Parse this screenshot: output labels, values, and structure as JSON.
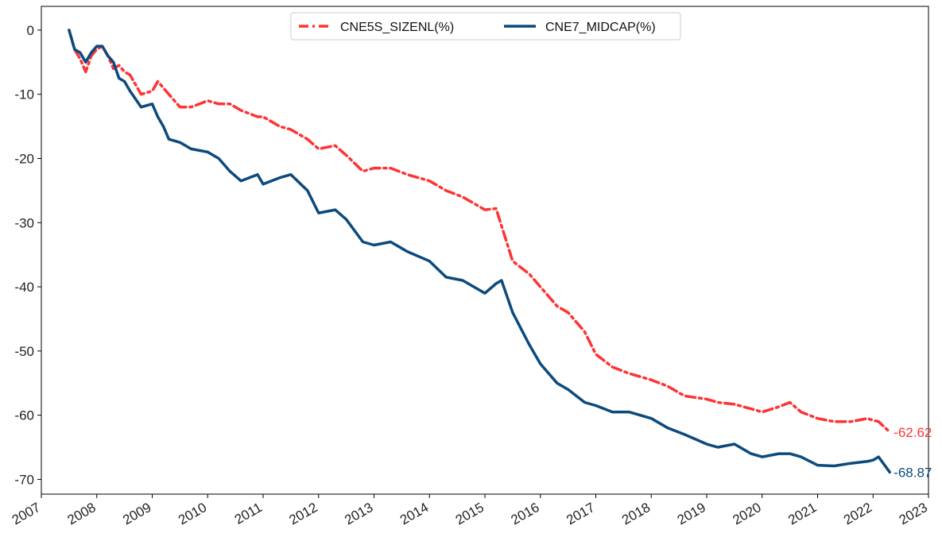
{
  "chart_data": {
    "type": "line",
    "title": "",
    "xlabel": "",
    "ylabel": "",
    "xlim": [
      2007.0,
      2023.0
    ],
    "ylim": [
      -72.3,
      3.7
    ],
    "x_ticks": [
      "2007",
      "2008",
      "2009",
      "2010",
      "2011",
      "2012",
      "2013",
      "2014",
      "2015",
      "2016",
      "2017",
      "2018",
      "2019",
      "2020",
      "2021",
      "2022",
      "2023"
    ],
    "y_ticks": [
      0,
      -10,
      -20,
      -30,
      -40,
      -50,
      -60,
      -70
    ],
    "y_tick_labels": [
      "0",
      "-10",
      "-20",
      "-30",
      "-40",
      "-50",
      "-60",
      "-70"
    ],
    "grid": false,
    "legend": {
      "placement": "top-center",
      "columns": 2
    },
    "series": [
      {
        "name": "CNE5S_SIZENL(%)",
        "color": "#ff3333",
        "style": "dashdot",
        "end_label": "-62.62",
        "x": [
          2007.5,
          2007.6,
          2007.7,
          2007.8,
          2007.9,
          2008.0,
          2008.1,
          2008.2,
          2008.3,
          2008.4,
          2008.5,
          2008.6,
          2008.8,
          2009.0,
          2009.1,
          2009.2,
          2009.3,
          2009.5,
          2009.7,
          2010.0,
          2010.2,
          2010.4,
          2010.6,
          2010.9,
          2011.0,
          2011.3,
          2011.5,
          2011.8,
          2012.0,
          2012.3,
          2012.5,
          2012.8,
          2013.0,
          2013.3,
          2013.6,
          2014.0,
          2014.3,
          2014.6,
          2015.0,
          2015.2,
          2015.3,
          2015.5,
          2015.8,
          2016.0,
          2016.3,
          2016.5,
          2016.8,
          2017.0,
          2017.3,
          2017.6,
          2018.0,
          2018.3,
          2018.6,
          2019.0,
          2019.2,
          2019.5,
          2019.8,
          2020.0,
          2020.3,
          2020.5,
          2020.7,
          2021.0,
          2021.3,
          2021.6,
          2021.9,
          2022.0,
          2022.1,
          2022.3
        ],
        "y": [
          0.0,
          -3.0,
          -4.5,
          -6.5,
          -4.0,
          -3.0,
          -2.5,
          -4.0,
          -6.0,
          -5.5,
          -6.5,
          -7.0,
          -10.0,
          -9.5,
          -8.0,
          -9.0,
          -10.0,
          -12.0,
          -12.0,
          -11.0,
          -11.5,
          -11.5,
          -12.5,
          -13.5,
          -13.5,
          -15.0,
          -15.5,
          -17.0,
          -18.5,
          -18.0,
          -19.5,
          -22.0,
          -21.5,
          -21.5,
          -22.5,
          -23.5,
          -25.0,
          -26.0,
          -28.0,
          -27.8,
          -30.5,
          -36.0,
          -38.0,
          -40.0,
          -43.0,
          -44.0,
          -47.0,
          -50.5,
          -52.5,
          -53.5,
          -54.5,
          -55.5,
          -57.0,
          -57.5,
          -58.0,
          -58.3,
          -59.0,
          -59.5,
          -58.7,
          -58.0,
          -59.5,
          -60.5,
          -61.0,
          -61.0,
          -60.5,
          -60.8,
          -61.0,
          -62.62
        ]
      },
      {
        "name": "CNE7_MIDCAP(%)",
        "color": "#0c4a7d",
        "style": "solid",
        "end_label": "-68.87",
        "x": [
          2007.5,
          2007.6,
          2007.7,
          2007.8,
          2007.9,
          2008.0,
          2008.1,
          2008.2,
          2008.3,
          2008.4,
          2008.5,
          2008.6,
          2008.8,
          2009.0,
          2009.1,
          2009.2,
          2009.3,
          2009.5,
          2009.7,
          2010.0,
          2010.2,
          2010.4,
          2010.6,
          2010.9,
          2011.0,
          2011.3,
          2011.5,
          2011.8,
          2012.0,
          2012.3,
          2012.5,
          2012.8,
          2013.0,
          2013.3,
          2013.6,
          2014.0,
          2014.3,
          2014.6,
          2015.0,
          2015.2,
          2015.3,
          2015.5,
          2015.8,
          2016.0,
          2016.3,
          2016.5,
          2016.8,
          2017.0,
          2017.3,
          2017.6,
          2018.0,
          2018.3,
          2018.6,
          2019.0,
          2019.2,
          2019.5,
          2019.8,
          2020.0,
          2020.3,
          2020.5,
          2020.7,
          2021.0,
          2021.3,
          2021.6,
          2021.9,
          2022.0,
          2022.1,
          2022.3
        ],
        "y": [
          0.0,
          -3.0,
          -3.5,
          -5.0,
          -3.5,
          -2.5,
          -2.5,
          -4.0,
          -5.0,
          -7.5,
          -8.0,
          -9.5,
          -12.0,
          -11.5,
          -13.5,
          -15.0,
          -17.0,
          -17.5,
          -18.5,
          -19.0,
          -20.0,
          -22.0,
          -23.5,
          -22.5,
          -24.0,
          -23.0,
          -22.5,
          -25.0,
          -28.5,
          -28.0,
          -29.5,
          -33.0,
          -33.5,
          -33.0,
          -34.5,
          -36.0,
          -38.5,
          -39.0,
          -41.0,
          -39.5,
          -39.0,
          -44.0,
          -49.0,
          -52.0,
          -55.0,
          -56.0,
          -58.0,
          -58.5,
          -59.5,
          -59.5,
          -60.5,
          -62.0,
          -63.0,
          -64.5,
          -65.0,
          -64.5,
          -66.0,
          -66.5,
          -66.0,
          -66.0,
          -66.5,
          -67.8,
          -67.9,
          -67.5,
          -67.2,
          -67.0,
          -66.5,
          -68.87
        ]
      }
    ]
  }
}
